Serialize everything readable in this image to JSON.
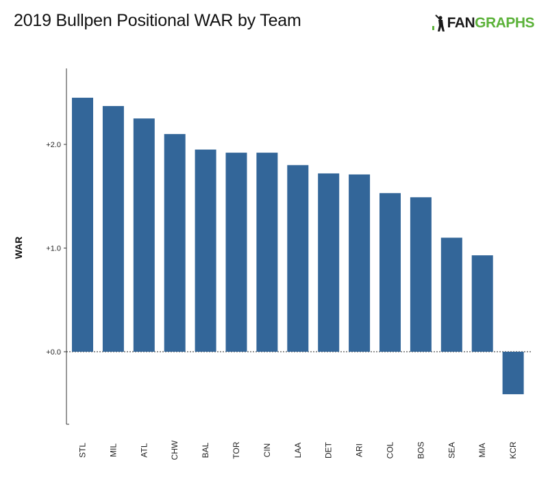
{
  "header": {
    "title": "2019 Bullpen Positional WAR by Team",
    "logo_text_a": "FAN",
    "logo_text_b": "GRAPHS"
  },
  "colors": {
    "bar": "#336699",
    "logo_green": "#5cb23a",
    "logo_dark": "#1a1a1a"
  },
  "chart_data": {
    "type": "bar",
    "title": "2019 Bullpen Positional WAR by Team",
    "xlabel": "",
    "ylabel": "WAR",
    "categories": [
      "STL",
      "MIL",
      "ATL",
      "CHW",
      "BAL",
      "TOR",
      "CIN",
      "LAA",
      "DET",
      "ARI",
      "COL",
      "BOS",
      "SEA",
      "MIA",
      "KCR"
    ],
    "values": [
      2.45,
      2.37,
      2.25,
      2.1,
      1.95,
      1.92,
      1.92,
      1.8,
      1.72,
      1.71,
      1.53,
      1.49,
      1.1,
      0.93,
      -0.41
    ],
    "yticks": [
      0,
      1,
      2
    ],
    "ytick_labels": [
      "+0.0",
      "+1.0",
      "+2.0"
    ],
    "ylim": [
      -0.7,
      2.73
    ],
    "grid": false,
    "zero_line": "dotted"
  }
}
